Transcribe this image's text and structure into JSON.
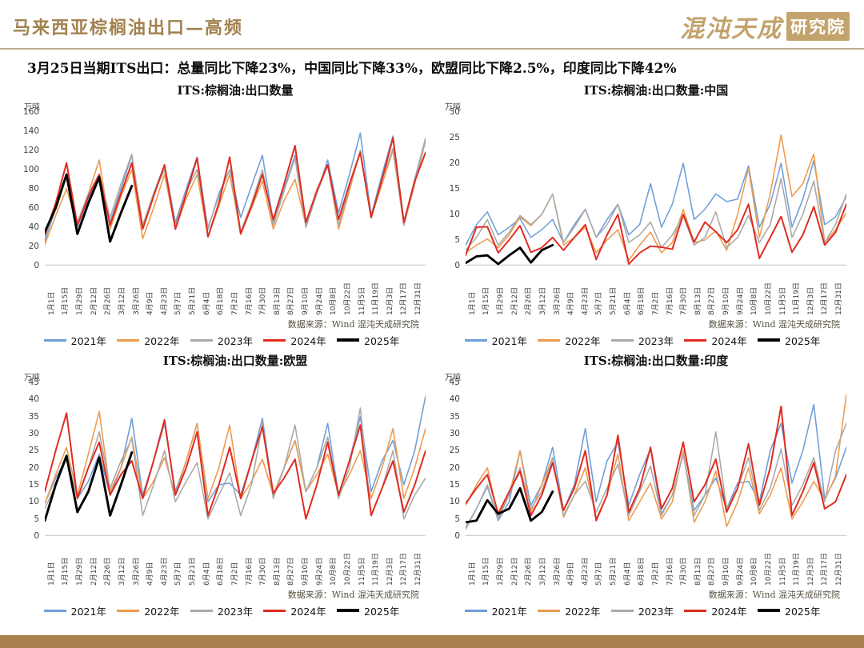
{
  "page": {
    "title": "马来西亚棕榈油出口—高频",
    "subtitle": "3月25日当期ITS出口：总量同比下降23%，中国同比下降33%，欧盟同比下降2.5%，印度同比下降42%",
    "logo_script": "混沌天成",
    "logo_badge": "研究院"
  },
  "source_note": "数据来源：Wind  混沌天成研究院",
  "colors": {
    "accent": "#a1814e",
    "footer_bar": "#a87f4e",
    "series_2021": "#6f9fd8",
    "series_2022": "#ed9b4e",
    "series_2023": "#aaaaaa",
    "series_2024": "#e02b20",
    "series_2025": "#000000"
  },
  "legend": [
    {
      "label": "2021年",
      "color": "#6f9fd8"
    },
    {
      "label": "2022年",
      "color": "#ed9b4e"
    },
    {
      "label": "2023年",
      "color": "#aaaaaa"
    },
    {
      "label": "2024年",
      "color": "#e02b20"
    },
    {
      "label": "2025年",
      "color": "#000000"
    }
  ],
  "x_labels": [
    "1月1日",
    "1月15日",
    "1月29日",
    "2月12日",
    "2月26日",
    "3月12日",
    "3月26日",
    "4月9日",
    "4月23日",
    "5月7日",
    "5月21日",
    "6月4日",
    "6月18日",
    "7月2日",
    "7月16日",
    "7月30日",
    "8月13日",
    "8月27日",
    "9月10日",
    "9月24日",
    "10月8日",
    "10月22日",
    "11月5日",
    "11月19日",
    "12月3日",
    "12月17日",
    "12月31日"
  ],
  "chart_data": [
    {
      "type": "line",
      "title": "ITS:棕榈油:出口数量",
      "unit": "万吨",
      "ylim": [
        0,
        160
      ],
      "yticks": [
        160,
        140,
        120,
        100,
        80,
        60,
        40,
        20,
        0
      ],
      "grid": false,
      "legend_position": "bottom",
      "series": [
        {
          "name": "2021年",
          "color": "#6f9fd8",
          "values": [
            25,
            60,
            95,
            40,
            70,
            95,
            45,
            80,
            115,
            40,
            75,
            105,
            45,
            80,
            113,
            38,
            75,
            100,
            50,
            83,
            115,
            45,
            80,
            115,
            40,
            75,
            110,
            55,
            95,
            138,
            52,
            95,
            135,
            45,
            90,
            133
          ]
        },
        {
          "name": "2022年",
          "color": "#ed9b4e",
          "values": [
            22,
            52,
            80,
            42,
            75,
            110,
            38,
            72,
            100,
            28,
            60,
            95,
            38,
            70,
            95,
            30,
            62,
            95,
            33,
            60,
            88,
            38,
            68,
            90,
            42,
            75,
            105,
            38,
            78,
            120,
            50,
            85,
            120,
            42,
            85,
            130
          ]
        },
        {
          "name": "2023年",
          "color": "#aaaaaa",
          "values": [
            28,
            62,
            95,
            45,
            75,
            95,
            50,
            85,
            116,
            42,
            75,
            100,
            42,
            78,
            100,
            40,
            72,
            100,
            35,
            65,
            100,
            42,
            78,
            112,
            40,
            75,
            105,
            42,
            82,
            120,
            50,
            90,
            122,
            42,
            88,
            132
          ]
        },
        {
          "name": "2024年",
          "color": "#e02b20",
          "values": [
            32,
            65,
            107,
            42,
            72,
            95,
            42,
            75,
            107,
            38,
            72,
            105,
            38,
            75,
            112,
            30,
            65,
            113,
            33,
            62,
            95,
            48,
            85,
            125,
            45,
            78,
            105,
            48,
            85,
            118,
            50,
            90,
            133,
            45,
            88,
            118
          ]
        },
        {
          "name": "2025年",
          "color": "#000000",
          "values": [
            35,
            60,
            95,
            33,
            65,
            92,
            25,
            55,
            83
          ]
        }
      ]
    },
    {
      "type": "line",
      "title": "ITS:棕榈油:出口数量:中国",
      "unit": "万吨",
      "ylim": [
        0,
        30
      ],
      "yticks": [
        30,
        25,
        20,
        15,
        10,
        5,
        0
      ],
      "grid": false,
      "legend_position": "bottom",
      "series": [
        {
          "name": "2021年",
          "color": "#6f9fd8",
          "values": [
            4,
            8,
            10.5,
            6,
            7.5,
            9.2,
            5.5,
            7,
            9,
            4.5,
            8,
            11,
            5.5,
            9,
            12,
            6,
            8,
            16,
            7.5,
            12,
            20,
            9,
            11,
            14,
            12.5,
            13,
            19.5,
            7.5,
            12,
            20,
            7.5,
            13,
            20.5,
            8,
            9.5,
            13.5
          ]
        },
        {
          "name": "2022年",
          "color": "#ed9b4e",
          "values": [
            2.5,
            4,
            5.2,
            3.5,
            6,
            9.5,
            7.8,
            10,
            14,
            4,
            5.5,
            7.5,
            2.5,
            5,
            7,
            1,
            4,
            6.5,
            2.5,
            4.5,
            11,
            4.5,
            5,
            6.8,
            3,
            10,
            19,
            5.5,
            14,
            25.5,
            13.5,
            16,
            21.8,
            4.5,
            7,
            10.3
          ]
        },
        {
          "name": "2023年",
          "color": "#aaaaaa",
          "values": [
            3,
            5.5,
            9,
            4,
            6.5,
            9.8,
            8,
            10,
            14,
            4.5,
            7.5,
            11,
            5.5,
            8,
            12,
            4.5,
            6,
            8.5,
            3.5,
            6,
            9.8,
            4,
            5.5,
            10.5,
            3.5,
            5.5,
            9.8,
            4.5,
            8,
            17,
            5.5,
            10,
            16.5,
            4.5,
            8,
            14
          ]
        },
        {
          "name": "2024年",
          "color": "#e02b20",
          "values": [
            2,
            7.5,
            7.6,
            2.5,
            5,
            7.8,
            2.6,
            3.5,
            5.5,
            3,
            5.5,
            8,
            1.2,
            6,
            10,
            0.3,
            2.5,
            3.8,
            3.6,
            3.2,
            10,
            4.6,
            8.5,
            6.6,
            4.5,
            7,
            12,
            1.4,
            5.5,
            9.6,
            2.6,
            6,
            11.5,
            4,
            6.5,
            12
          ]
        },
        {
          "name": "2025年",
          "color": "#000000",
          "values": [
            0.5,
            1.8,
            2,
            0.3,
            2,
            3.5,
            0.6,
            3,
            4
          ]
        }
      ]
    },
    {
      "type": "line",
      "title": "ITS:棕榈油:出口数量:欧盟",
      "unit": "万吨",
      "ylim": [
        0,
        45
      ],
      "yticks": [
        45,
        40,
        35,
        30,
        25,
        20,
        15,
        10,
        5,
        0
      ],
      "grid": false,
      "legend_position": "bottom",
      "series": [
        {
          "name": "2021年",
          "color": "#6f9fd8",
          "values": [
            9.5,
            17,
            23,
            11,
            16,
            24,
            12,
            20,
            34.5,
            12,
            22,
            33,
            13,
            22,
            33,
            10,
            15,
            15.5,
            12,
            22,
            34.5,
            12,
            20,
            28,
            13,
            20,
            33,
            12,
            22,
            35,
            13,
            22,
            28,
            15,
            25,
            41
          ]
        },
        {
          "name": "2022年",
          "color": "#ed9b4e",
          "values": [
            9.5,
            18,
            26,
            12,
            24,
            36.5,
            13,
            20,
            29,
            11,
            16,
            23,
            12,
            22,
            33,
            11,
            20,
            32.5,
            11,
            16,
            22.5,
            12,
            20,
            28,
            13,
            18,
            24,
            12,
            18,
            25,
            11,
            20,
            31.5,
            11,
            20,
            31.5
          ]
        },
        {
          "name": "2023年",
          "color": "#aaaaaa",
          "values": [
            8,
            15,
            22.5,
            11,
            20,
            30.5,
            14,
            22,
            28.5,
            6,
            15,
            25,
            10,
            16,
            21.5,
            5,
            12,
            18.5,
            6,
            15,
            33,
            11,
            20,
            32.5,
            13,
            20,
            29,
            11,
            20,
            37.5,
            6,
            14,
            25,
            5,
            12,
            17
          ]
        },
        {
          "name": "2024年",
          "color": "#e02b20",
          "values": [
            13,
            25,
            36,
            11,
            20,
            27.5,
            12,
            18,
            22,
            11,
            22,
            34,
            12,
            20,
            30.5,
            6,
            15,
            26,
            11,
            22,
            32,
            12.5,
            17,
            22.5,
            5,
            15,
            27.5,
            12,
            22,
            32.5,
            6,
            14,
            22,
            7,
            15,
            25
          ]
        },
        {
          "name": "2025年",
          "color": "#000000",
          "values": [
            4.5,
            15,
            23.5,
            7,
            13,
            23,
            6,
            15,
            24.5
          ]
        }
      ]
    },
    {
      "type": "line",
      "title": "ITS:棕榈油:出口数量:印度",
      "unit": "万吨",
      "ylim": [
        0,
        45
      ],
      "yticks": [
        45,
        40,
        35,
        30,
        25,
        20,
        15,
        10,
        5,
        0
      ],
      "grid": false,
      "legend_position": "bottom",
      "series": [
        {
          "name": "2021年",
          "color": "#6f9fd8",
          "values": [
            2.5,
            8,
            14.5,
            4.5,
            10,
            25,
            9,
            15,
            26,
            7.5,
            15,
            31.5,
            10,
            22,
            27.5,
            9,
            18,
            25.5,
            6.5,
            12,
            24,
            7.5,
            12,
            17,
            8,
            15.5,
            16,
            10,
            25,
            33,
            15.5,
            25,
            38.5,
            11,
            17,
            26
          ]
        },
        {
          "name": "2022年",
          "color": "#ed9b4e",
          "values": [
            9,
            15,
            20,
            5.5,
            12,
            25,
            7,
            15,
            23,
            5.5,
            12,
            20,
            5,
            12,
            24,
            4.5,
            10,
            15.5,
            5,
            10,
            25,
            4,
            10,
            19,
            2.8,
            10,
            20,
            6.5,
            12,
            20,
            5,
            10,
            16,
            10.5,
            17.5,
            41.5
          ]
        },
        {
          "name": "2023年",
          "color": "#aaaaaa",
          "values": [
            2,
            8,
            15,
            5,
            12,
            20,
            8,
            13,
            23,
            6,
            12,
            16,
            7,
            14,
            21,
            6,
            13,
            20.5,
            6,
            12,
            24,
            6,
            12,
            30.5,
            8,
            14,
            23,
            7.5,
            14,
            25.5,
            9,
            15,
            23,
            10,
            25,
            33
          ]
        },
        {
          "name": "2024年",
          "color": "#e02b20",
          "values": [
            9.5,
            14,
            18,
            6.5,
            13,
            19,
            6,
            12,
            21.5,
            7.5,
            14,
            25,
            4.5,
            12,
            29.5,
            7,
            14,
            26,
            8,
            14,
            27.5,
            10,
            15,
            22.5,
            7,
            14,
            27,
            9,
            20,
            38,
            6,
            13,
            21.5,
            8,
            10,
            18
          ]
        },
        {
          "name": "2025年",
          "color": "#000000",
          "values": [
            4,
            4.5,
            10.5,
            6.5,
            8,
            14,
            4.5,
            7,
            13
          ]
        }
      ]
    }
  ]
}
